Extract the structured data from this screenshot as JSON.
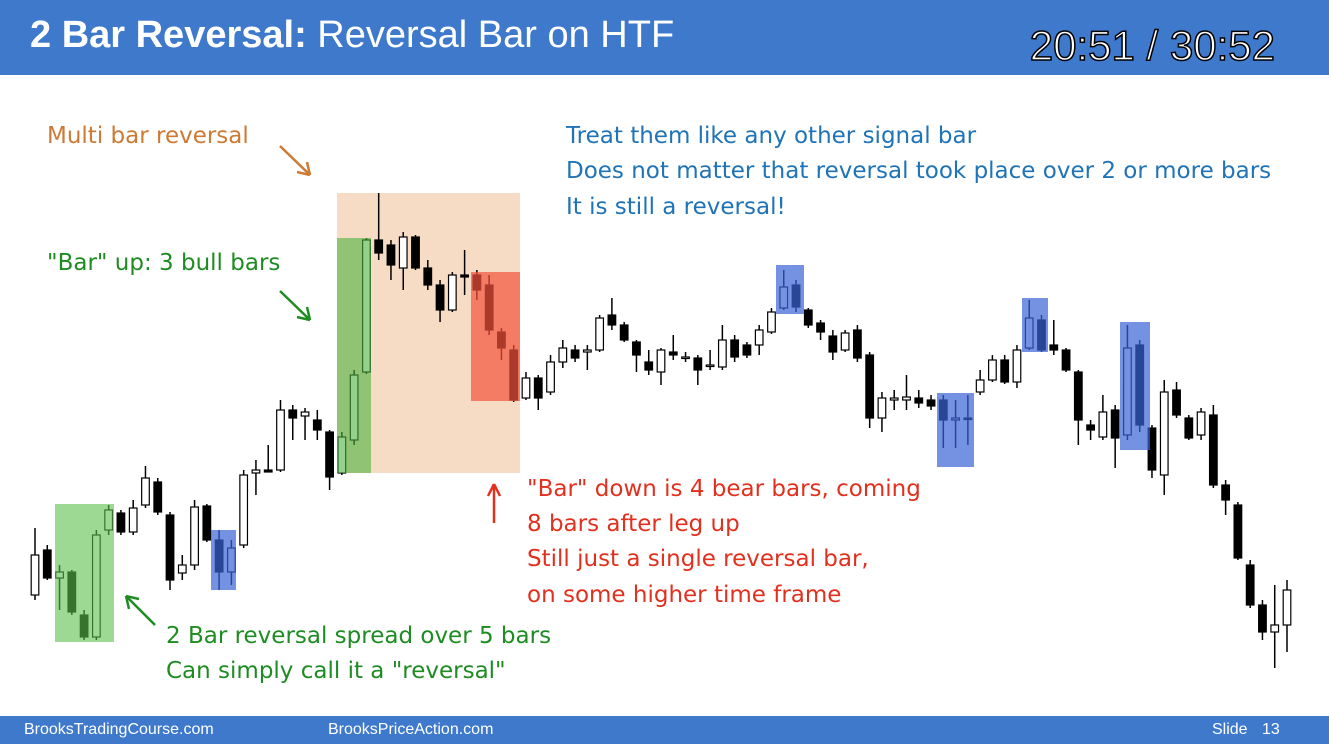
{
  "header": {
    "title_bold": "2 Bar Reversal:",
    "title_rest": "Reversal Bar on HTF",
    "timer": "20:51 / 30:52"
  },
  "annotations": {
    "multi": "Multi bar reversal",
    "blue": [
      "Treat them like any other signal bar",
      "Does not matter that reversal took place over 2 or more bars",
      "It is still a reversal!"
    ],
    "bar_up": "\"Bar\" up: 3 bull bars",
    "red": [
      "\"Bar\" down is 4 bear bars, coming",
      "8 bars after leg up",
      "Still just a single reversal bar,",
      "on some higher time frame"
    ],
    "green": [
      "2 Bar reversal spread over 5 bars",
      "Can simply call it a \"reversal\""
    ]
  },
  "chart_data": {
    "type": "candlestick",
    "ylim": [
      0,
      700
    ],
    "open": [
      105,
      150,
      122,
      128,
      85,
      63,
      170,
      187,
      168,
      195,
      218,
      185,
      127,
      135,
      194,
      160,
      128,
      155,
      227,
      230,
      230,
      290,
      284,
      280,
      268,
      227,
      260,
      328,
      460,
      455,
      432,
      463,
      432,
      415,
      390,
      425,
      425,
      415,
      368,
      350,
      302,
      322,
      308,
      338,
      350,
      348,
      350,
      385,
      375,
      358,
      338,
      328,
      348,
      342,
      342,
      334,
      333,
      360,
      355,
      355,
      368,
      392,
      415,
      390,
      377,
      364,
      350,
      370,
      345,
      282,
      300,
      300,
      302,
      300,
      300,
      280,
      282,
      308,
      320,
      340,
      318,
      352,
      380,
      355,
      350,
      328,
      275,
      263,
      290,
      265,
      355,
      272,
      225,
      310,
      282,
      265,
      285,
      215,
      195,
      135,
      95,
      68,
      75
    ],
    "high": [
      172,
      155,
      135,
      130,
      90,
      170,
      195,
      190,
      200,
      234,
      222,
      188,
      145,
      200,
      196,
      170,
      160,
      230,
      240,
      255,
      300,
      295,
      292,
      290,
      270,
      268,
      330,
      462,
      507,
      460,
      468,
      465,
      440,
      420,
      428,
      450,
      430,
      425,
      372,
      355,
      328,
      325,
      345,
      360,
      355,
      355,
      385,
      402,
      378,
      360,
      350,
      352,
      365,
      348,
      345,
      350,
      375,
      365,
      358,
      375,
      392,
      430,
      420,
      392,
      380,
      370,
      370,
      375,
      348,
      308,
      310,
      325,
      310,
      305,
      305,
      300,
      305,
      330,
      345,
      345,
      355,
      400,
      385,
      380,
      352,
      330,
      280,
      305,
      295,
      375,
      360,
      275,
      320,
      318,
      285,
      292,
      295,
      220,
      198,
      140,
      100,
      115,
      120
    ],
    "low": [
      100,
      120,
      90,
      85,
      60,
      60,
      165,
      165,
      165,
      192,
      185,
      110,
      120,
      130,
      158,
      110,
      115,
      152,
      205,
      228,
      228,
      260,
      260,
      260,
      210,
      225,
      255,
      326,
      440,
      420,
      410,
      430,
      410,
      378,
      388,
      405,
      400,
      365,
      340,
      298,
      300,
      290,
      305,
      332,
      338,
      330,
      348,
      370,
      358,
      328,
      325,
      315,
      340,
      338,
      315,
      330,
      330,
      338,
      342,
      345,
      366,
      390,
      388,
      372,
      360,
      340,
      348,
      338,
      272,
      268,
      290,
      290,
      292,
      290,
      252,
      252,
      255,
      305,
      318,
      316,
      312,
      350,
      348,
      345,
      328,
      255,
      260,
      260,
      232,
      260,
      268,
      222,
      205,
      282,
      260,
      260,
      212,
      185,
      140,
      92,
      60,
      32,
      48
    ],
    "close": [
      145,
      122,
      128,
      88,
      63,
      165,
      190,
      168,
      192,
      222,
      188,
      120,
      135,
      193,
      160,
      128,
      152,
      225,
      230,
      228,
      290,
      282,
      288,
      270,
      223,
      263,
      325,
      460,
      447,
      435,
      463,
      432,
      415,
      390,
      425,
      423,
      410,
      370,
      352,
      300,
      322,
      302,
      338,
      352,
      342,
      350,
      382,
      375,
      360,
      345,
      330,
      350,
      345,
      343,
      330,
      335,
      360,
      343,
      345,
      370,
      388,
      413,
      393,
      375,
      368,
      348,
      367,
      342,
      282,
      302,
      302,
      303,
      297,
      294,
      280,
      282,
      281,
      320,
      340,
      318,
      350,
      382,
      350,
      350,
      330,
      280,
      270,
      288,
      262,
      352,
      275,
      230,
      308,
      285,
      262,
      288,
      215,
      200,
      142,
      95,
      68,
      75,
      110
    ]
  },
  "footer": {
    "site1": "BrooksTradingCourse.com",
    "site2": "BrooksPriceAction.com",
    "slide_label": "Slide",
    "slide_number": "13"
  }
}
